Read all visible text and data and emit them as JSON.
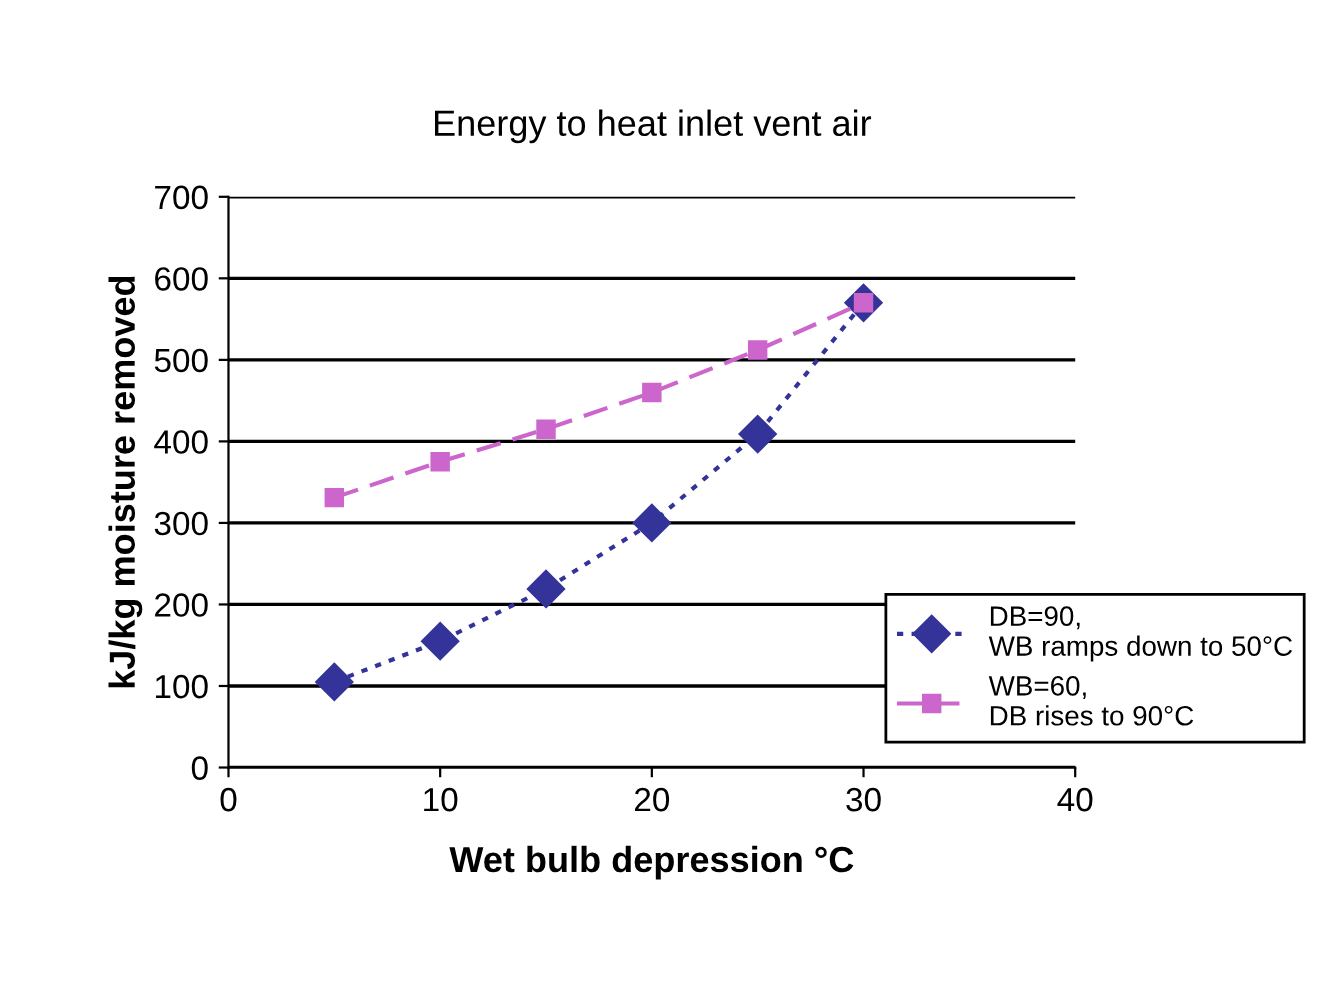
{
  "chart_data": {
    "type": "line",
    "title": "Energy to heat inlet vent air",
    "xlabel": "Wet bulb depression °C",
    "ylabel": "kJ/kg moisture removed",
    "x": [
      5,
      10,
      15,
      20,
      25,
      30
    ],
    "series": [
      {
        "name": "DB=90, WB ramps down to 50°C",
        "color": "#333399",
        "marker": "diamond",
        "line_style": "dotted",
        "values": [
          105,
          155,
          219,
          300,
          409,
          570
        ]
      },
      {
        "name": "WB=60, DB rises to 90°C",
        "color": "#cc66cc",
        "marker": "square",
        "line_style": "dashed",
        "values": [
          331,
          375,
          415,
          460,
          512,
          570
        ]
      }
    ],
    "xlim": [
      0,
      40
    ],
    "xticks": [
      0,
      10,
      20,
      30,
      40
    ],
    "ylim": [
      0,
      700
    ],
    "yticks": [
      0,
      100,
      200,
      300,
      400,
      500,
      600,
      700
    ],
    "grid": "y",
    "legend": "bottom right"
  }
}
